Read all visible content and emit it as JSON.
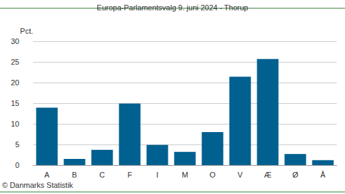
{
  "chart_data": {
    "type": "bar",
    "title": "Europa-Parlamentsvalg 9. juni 2024 - Thorup",
    "ylabel": "Pct.",
    "categories": [
      "A",
      "B",
      "C",
      "F",
      "I",
      "M",
      "O",
      "V",
      "Æ",
      "Ø",
      "Å"
    ],
    "values": [
      13.9,
      1.5,
      3.7,
      14.9,
      4.9,
      3.2,
      8.0,
      21.4,
      25.7,
      2.7,
      1.2
    ],
    "color": "#00608f",
    "ylim": [
      0,
      30
    ],
    "yticks": [
      0,
      5,
      10,
      15,
      20,
      25,
      30
    ],
    "grid": true,
    "annotations": [
      "© Danmarks Statistik"
    ]
  }
}
